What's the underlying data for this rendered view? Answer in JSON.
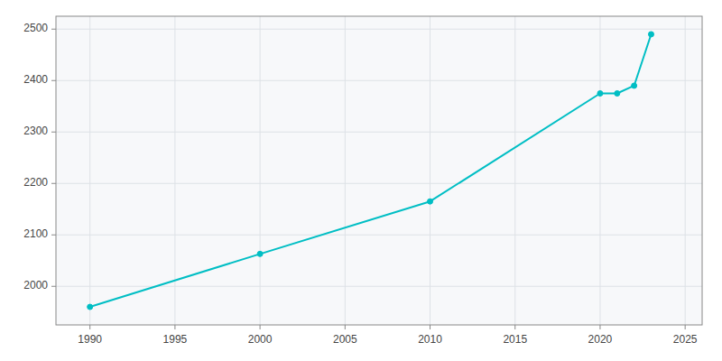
{
  "chart_data": {
    "type": "line",
    "x": [
      1990,
      2000,
      2010,
      2020,
      2021,
      2022,
      2023
    ],
    "values": [
      1960,
      2063,
      2165,
      2375,
      2375,
      2390,
      2490
    ],
    "color": "#00BEC4",
    "marker": "circle",
    "xlim": [
      1988,
      2026
    ],
    "ylim": [
      1925,
      2525
    ],
    "xticks": [
      1990,
      1995,
      2000,
      2005,
      2010,
      2015,
      2020,
      2025
    ],
    "yticks": [
      2000,
      2100,
      2200,
      2300,
      2400,
      2500
    ],
    "grid": true
  }
}
